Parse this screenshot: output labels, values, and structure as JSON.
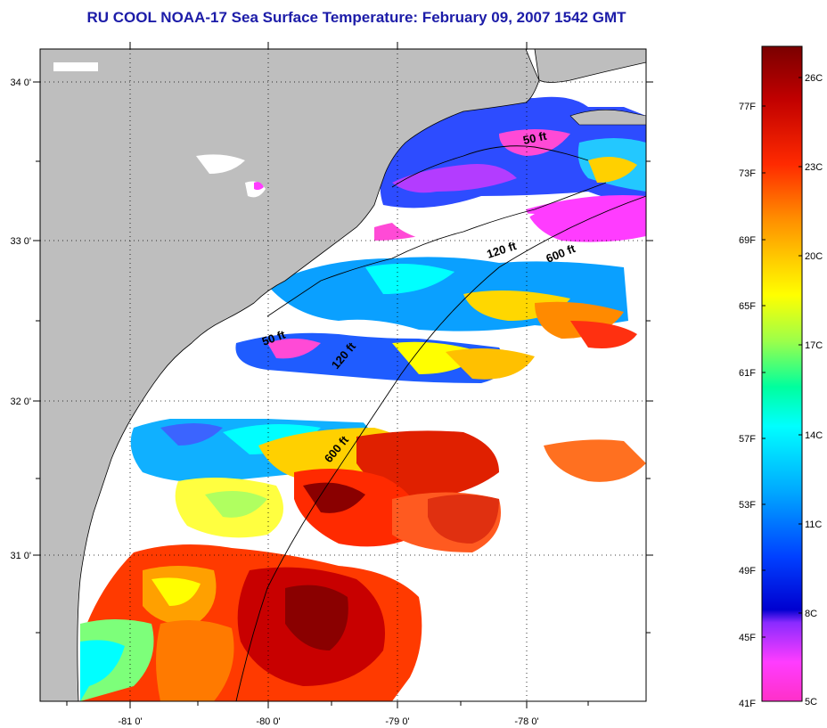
{
  "title": "RU COOL  NOAA-17  Sea Surface Temperature:  February 09, 2007 1542 GMT",
  "map": {
    "lon_range": [
      -81.7,
      -77.3
    ],
    "lat_range": [
      30.15,
      34.2
    ],
    "lon_ticks": [
      "-81 0'",
      "-80 0'",
      "-79 0'",
      "-78 0'"
    ],
    "lat_ticks": [
      "34 0'",
      "33 0'",
      "32 0'",
      "31 0'"
    ],
    "land_color": "#bebebe",
    "cloud_color": "#ffffff",
    "grid": true,
    "isobath_labels": [
      "50 ft",
      "120 ft",
      "600 ft",
      "50 ft",
      "120 ft",
      "600 ft"
    ]
  },
  "colorbar": {
    "celsius_labels": [
      "26C",
      "23C",
      "20C",
      "17C",
      "14C",
      "11C",
      "8C",
      "5C"
    ],
    "fahrenheit_labels": [
      "77F",
      "73F",
      "69F",
      "65F",
      "61F",
      "57F",
      "53F",
      "49F",
      "45F",
      "41F"
    ],
    "colors": [
      "#7a0000",
      "#c00000",
      "#ff2a00",
      "#ff8a00",
      "#ffd000",
      "#ffff00",
      "#9cff4a",
      "#00ff9e",
      "#00ffff",
      "#00a8ff",
      "#0040ff",
      "#1010e0",
      "#8a2bff",
      "#ff3cff",
      "#ff30c8"
    ]
  }
}
